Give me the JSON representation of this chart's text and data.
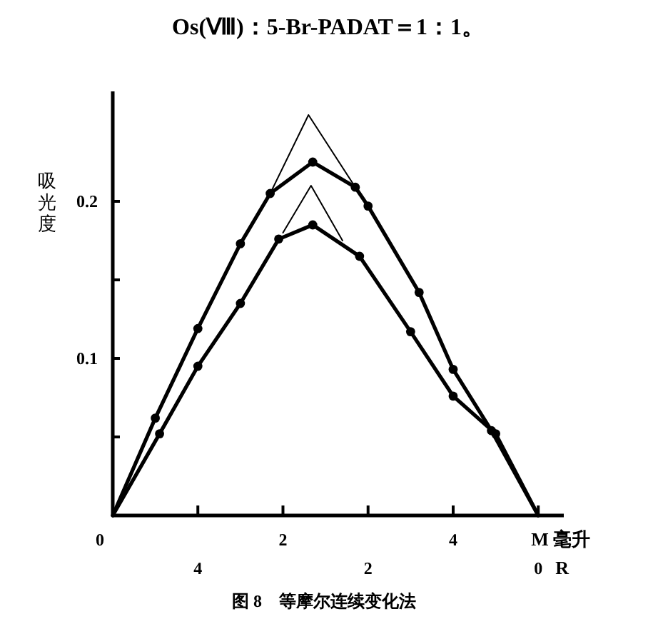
{
  "chart_data": {
    "type": "line",
    "title": "Os(Ⅷ)：5-Br-PADAT＝1：1。",
    "xlabel": "M 毫升",
    "ylabel": "吸光度",
    "x2label": "R",
    "annotations": [
      "图 8　等摩尔连续变化法"
    ],
    "xlim": [
      0,
      5.3
    ],
    "xticks": [
      0,
      {
        "value": 1,
        "label": null
      },
      2,
      {
        "value": 3,
        "label": null
      },
      4,
      {
        "value": 5,
        "label": null
      }
    ],
    "x2lim": [
      5,
      -0.3
    ],
    "x2ticks": [
      4,
      2,
      0
    ],
    "ylim": [
      0,
      0.27
    ],
    "yticks": [
      {
        "value": 0.05,
        "label": null
      },
      0.1,
      {
        "value": 0.15,
        "label": null
      },
      0.2
    ],
    "grid": false,
    "line_style": "solid",
    "series": [
      {
        "color": "#000000",
        "marker": "circle",
        "x": [
          0,
          0.5,
          1.0,
          1.5,
          1.85,
          2.35,
          2.85,
          3.0,
          3.6,
          4.0,
          4.45,
          5
        ],
        "values": [
          0,
          0.062,
          0.119,
          0.173,
          0.205,
          0.225,
          0.209,
          0.197,
          0.142,
          0.093,
          0.054,
          0
        ]
      },
      {
        "color": "#000000",
        "marker": "circle",
        "x": [
          0,
          0.55,
          1.0,
          1.5,
          1.95,
          2.35,
          2.9,
          3.5,
          4.0,
          4.5,
          5
        ],
        "values": [
          0,
          0.052,
          0.095,
          0.135,
          0.176,
          0.185,
          0.165,
          0.117,
          0.076,
          0.052,
          0
        ]
      },
      {
        "color": "#000000",
        "marker": "none",
        "x": [
          1.85,
          2.3,
          2.85
        ],
        "values": [
          0.205,
          0.255,
          0.209
        ]
      },
      {
        "color": "#000000",
        "marker": "none",
        "x": [
          2.0,
          2.33,
          2.7
        ],
        "values": [
          0.18,
          0.21,
          0.175
        ]
      }
    ]
  }
}
